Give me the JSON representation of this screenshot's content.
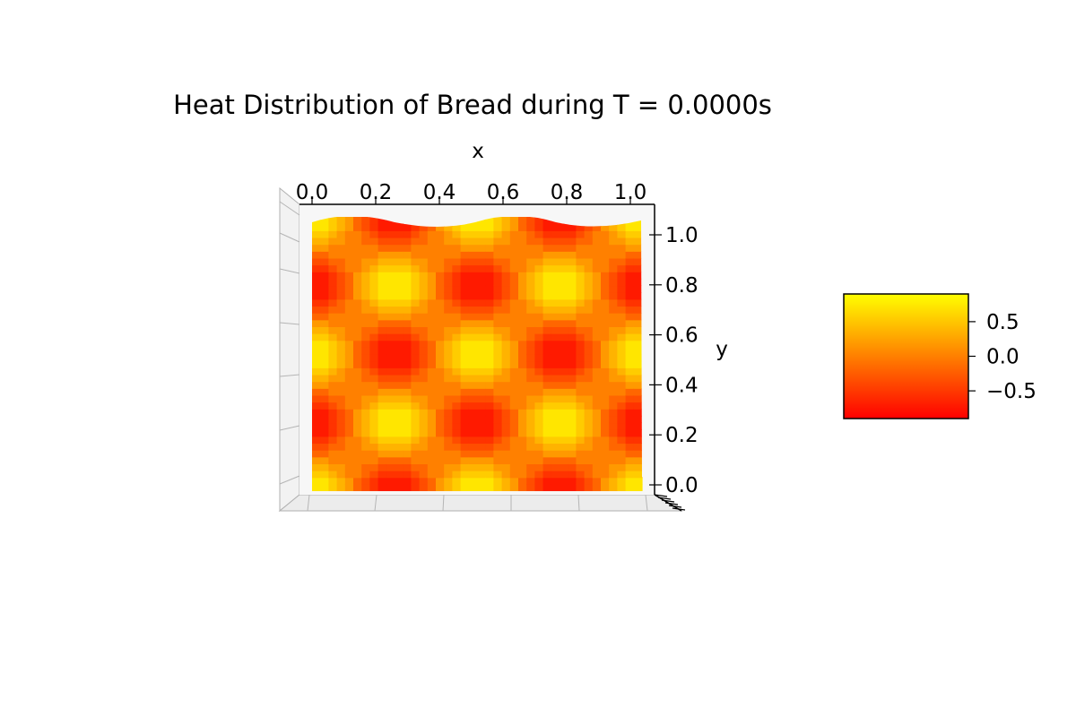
{
  "chart_data": {
    "type": "heatmap",
    "title": "Heat Distribution of Bread during T = 0.0000s",
    "xlabel": "x",
    "ylabel": "y",
    "xlim": [
      0,
      1
    ],
    "ylim": [
      0,
      1
    ],
    "x_ticks": [
      "0.0",
      "0.2",
      "0.4",
      "0.6",
      "0.8",
      "1.0"
    ],
    "y_ticks": [
      "0.0",
      "0.2",
      "0.4",
      "0.6",
      "0.8",
      "1.0"
    ],
    "x_tick_values": [
      0.0,
      0.2,
      0.4,
      0.6,
      0.8,
      1.0
    ],
    "y_tick_values": [
      0.0,
      0.2,
      0.4,
      0.6,
      0.8,
      1.0
    ],
    "grid": true,
    "colormap": "autumn",
    "colormap_colors": {
      "min": "#ff0000",
      "max": "#ffff00"
    },
    "value_range": [
      -1,
      1
    ],
    "function": "sin(4*pi*x) * sin(4*pi*y) variant, peaks (yellow) and troughs (red) alternating in a 4x4 checkerboard",
    "grid_values": [
      [
        0.9,
        -0.9,
        0.9,
        -0.9
      ],
      [
        -0.9,
        0.9,
        -0.9,
        0.9
      ],
      [
        0.9,
        -0.9,
        0.9,
        -0.9
      ],
      [
        -0.9,
        0.9,
        -0.9,
        0.9
      ]
    ],
    "colorbar": {
      "ticks": [
        "0.5",
        "0.0",
        "−0.5"
      ],
      "tick_values": [
        0.5,
        0.0,
        -0.5
      ],
      "range": [
        -0.9,
        0.9
      ]
    }
  }
}
